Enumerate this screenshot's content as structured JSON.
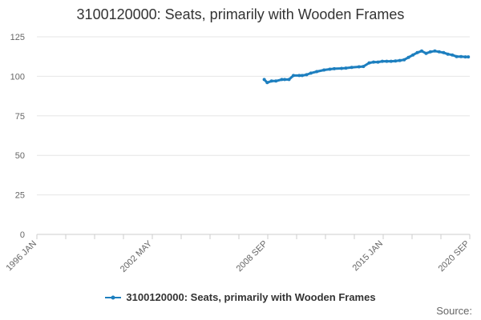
{
  "chart_data": {
    "type": "line",
    "title": "3100120000: Seats, primarily with Wooden Frames",
    "xlabel": "",
    "ylabel": "",
    "x_tick_labels": [
      "1996 JAN",
      "2002 MAY",
      "2008 SEP",
      "2015 JAN",
      "2020 SEP"
    ],
    "y_ticks": [
      0,
      25,
      50,
      75,
      100,
      125
    ],
    "ylim": [
      0,
      125
    ],
    "xlim": [
      "1996-01",
      "2020-10"
    ],
    "grid": true,
    "legend_position": "bottom",
    "source_label": "Source:",
    "line_color": "#1d7fbf",
    "series": [
      {
        "name": "3100120000: Seats, primarily with Wooden Frames",
        "color": "#1d7fbf",
        "x": [
          "2009-01",
          "2009-03",
          "2009-06",
          "2009-09",
          "2010-01",
          "2010-03",
          "2010-06",
          "2010-09",
          "2011-01",
          "2011-03",
          "2011-06",
          "2011-09",
          "2012-01",
          "2012-06",
          "2012-10",
          "2013-01",
          "2013-06",
          "2013-09",
          "2014-01",
          "2014-06",
          "2014-09",
          "2015-01",
          "2015-04",
          "2015-07",
          "2015-10",
          "2016-01",
          "2016-04",
          "2016-07",
          "2016-10",
          "2017-01",
          "2017-04",
          "2017-07",
          "2017-10",
          "2018-01",
          "2018-04",
          "2018-07",
          "2018-10",
          "2019-01",
          "2019-04",
          "2019-07",
          "2019-10",
          "2020-01",
          "2020-04",
          "2020-07",
          "2020-09"
        ],
        "values": [
          98,
          96,
          97,
          97,
          98,
          98,
          98,
          100.5,
          100.5,
          100.5,
          101,
          102,
          103,
          104,
          104.5,
          104.8,
          105,
          105.2,
          105.6,
          106,
          106.2,
          108.5,
          109,
          109,
          109.5,
          109.5,
          109.5,
          109.7,
          110,
          110.5,
          112,
          113.5,
          115,
          116,
          114.5,
          115.5,
          116,
          115.5,
          115,
          114,
          113.5,
          112.5,
          112.5,
          112.3,
          112.3
        ]
      }
    ]
  },
  "legend": {
    "label": "3100120000: Seats, primarily with Wooden Frames"
  }
}
